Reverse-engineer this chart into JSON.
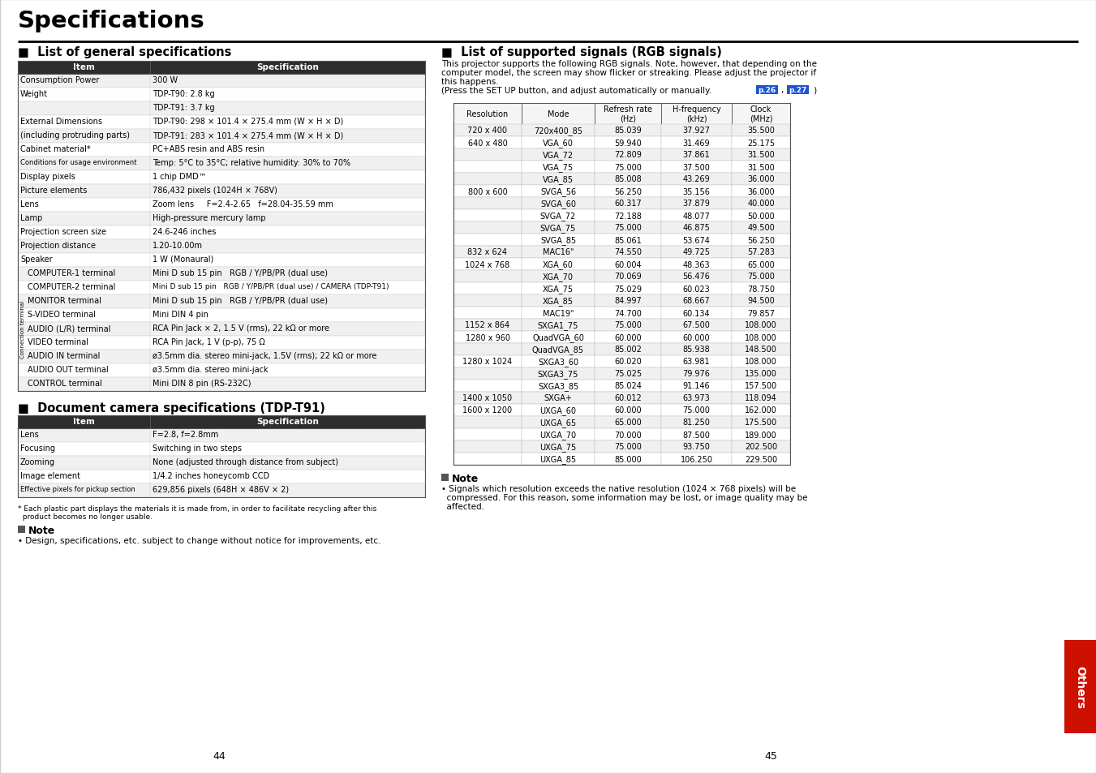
{
  "title": "Specifications",
  "page_left": "44",
  "page_right": "45",
  "section_left_title": "List of general specifications",
  "section_right_title": "List of supported signals (RGB signals)",
  "section_doc_title": "Document camera specifications (TDP-T91)",
  "general_specs_rows": [
    [
      "Consumption Power",
      "300 W",
      false,
      false
    ],
    [
      "Weight",
      "TDP-T90: 2.8 kg",
      false,
      false
    ],
    [
      "",
      "TDP-T91: 3.7 kg",
      false,
      false
    ],
    [
      "External Dimensions",
      "TDP-T90: 298 × 101.4 × 275.4 mm (W × H × D)",
      false,
      false
    ],
    [
      "(including protruding parts)",
      "TDP-T91: 283 × 101.4 × 275.4 mm (W × H × D)",
      false,
      false
    ],
    [
      "Cabinet material*",
      "PC+ABS resin and ABS resin",
      false,
      false
    ],
    [
      "Conditions for usage environment",
      "Temp: 5°C to 35°C; relative humidity: 30% to 70%",
      true,
      false
    ],
    [
      "Display pixels",
      "1 chip DMD™",
      false,
      false
    ],
    [
      "Picture elements",
      "786,432 pixels (1024H × 768V)",
      false,
      false
    ],
    [
      "Lens",
      "Zoom lens     F=2.4-2.65   f=28.04-35.59 mm",
      false,
      false
    ],
    [
      "Lamp",
      "High-pressure mercury lamp",
      false,
      false
    ],
    [
      "Projection screen size",
      "24.6-246 inches",
      false,
      false
    ],
    [
      "Projection distance",
      "1.20-10.00m",
      false,
      false
    ],
    [
      "Speaker",
      "1 W (Monaural)",
      false,
      false
    ],
    [
      "COMPUTER-1 terminal",
      "Mini D sub 15 pin   RGB / Y/PB/PR (dual use)",
      false,
      true
    ],
    [
      "COMPUTER-2 terminal",
      "Mini D sub 15 pin   RGB / Y/PB/PR (dual use) / CAMERA (TDP-T91)",
      false,
      true
    ],
    [
      "MONITOR terminal",
      "Mini D sub 15 pin   RGB / Y/PB/PR (dual use)",
      false,
      true
    ],
    [
      "S-VIDEO terminal",
      "Mini DIN 4 pin",
      false,
      true
    ],
    [
      "AUDIO (L/R) terminal",
      "RCA Pin Jack × 2, 1.5 V (rms), 22 kΩ or more",
      false,
      true
    ],
    [
      "VIDEO terminal",
      "RCA Pin Jack, 1 V (p-p), 75 Ω",
      false,
      true
    ],
    [
      "AUDIO IN terminal",
      "ø3.5mm dia. stereo mini-jack, 1.5V (rms); 22 kΩ or more",
      false,
      true
    ],
    [
      "AUDIO OUT terminal",
      "ø3.5mm dia. stereo mini-jack",
      false,
      true
    ],
    [
      "CONTROL terminal",
      "Mini DIN 8 pin (RS-232C)",
      false,
      true
    ]
  ],
  "doc_cam_rows": [
    [
      "Lens",
      "F=2.8, f=2.8mm",
      false
    ],
    [
      "Focusing",
      "Switching in two steps",
      false
    ],
    [
      "Zooming",
      "None (adjusted through distance from subject)",
      false
    ],
    [
      "Image element",
      "1/4.2 inches honeycomb CCD",
      false
    ],
    [
      "Effective pixels for pickup section",
      "629,856 pixels (648H × 486V × 2)",
      true
    ]
  ],
  "footnote_line1": "* Each plastic part displays the materials it is made from, in order to facilitate recycling after this",
  "footnote_line2": "  product becomes no longer usable.",
  "note_left_text": "• Design, specifications, etc. subject to change without notice for improvements, etc.",
  "rgb_intro_lines": [
    "This projector supports the following RGB signals. Note, however, that depending on the",
    "computer model, the screen may show flicker or streaking. Please adjust the projector if",
    "this happens.",
    "(Press the SET UP button, and adjust automatically or manually."
  ],
  "rgb_headers": [
    "Resolution",
    "Mode",
    "Refresh rate\n(Hz)",
    "H-frequency\n(kHz)",
    "Clock\n(MHz)"
  ],
  "rgb_rows": [
    [
      "720 x 400",
      "720x400_85",
      "85.039",
      "37.927",
      "35.500"
    ],
    [
      "640 x 480",
      "VGA_60",
      "59.940",
      "31.469",
      "25.175"
    ],
    [
      "",
      "VGA_72",
      "72.809",
      "37.861",
      "31.500"
    ],
    [
      "",
      "VGA_75",
      "75.000",
      "37.500",
      "31.500"
    ],
    [
      "",
      "VGA_85",
      "85.008",
      "43.269",
      "36.000"
    ],
    [
      "800 x 600",
      "SVGA_56",
      "56.250",
      "35.156",
      "36.000"
    ],
    [
      "",
      "SVGA_60",
      "60.317",
      "37.879",
      "40.000"
    ],
    [
      "",
      "SVGA_72",
      "72.188",
      "48.077",
      "50.000"
    ],
    [
      "",
      "SVGA_75",
      "75.000",
      "46.875",
      "49.500"
    ],
    [
      "",
      "SVGA_85",
      "85.061",
      "53.674",
      "56.250"
    ],
    [
      "832 x 624",
      "MAC16\"",
      "74.550",
      "49.725",
      "57.283"
    ],
    [
      "1024 x 768",
      "XGA_60",
      "60.004",
      "48.363",
      "65.000"
    ],
    [
      "",
      "XGA_70",
      "70.069",
      "56.476",
      "75.000"
    ],
    [
      "",
      "XGA_75",
      "75.029",
      "60.023",
      "78.750"
    ],
    [
      "",
      "XGA_85",
      "84.997",
      "68.667",
      "94.500"
    ],
    [
      "",
      "MAC19\"",
      "74.700",
      "60.134",
      "79.857"
    ],
    [
      "1152 x 864",
      "SXGA1_75",
      "75.000",
      "67.500",
      "108.000"
    ],
    [
      "1280 x 960",
      "QuadVGA_60",
      "60.000",
      "60.000",
      "108.000"
    ],
    [
      "",
      "QuadVGA_85",
      "85.002",
      "85.938",
      "148.500"
    ],
    [
      "1280 x 1024",
      "SXGA3_60",
      "60.020",
      "63.981",
      "108.000"
    ],
    [
      "",
      "SXGA3_75",
      "75.025",
      "79.976",
      "135.000"
    ],
    [
      "",
      "SXGA3_85",
      "85.024",
      "91.146",
      "157.500"
    ],
    [
      "1400 x 1050",
      "SXGA+",
      "60.012",
      "63.973",
      "118.094"
    ],
    [
      "1600 x 1200",
      "UXGA_60",
      "60.000",
      "75.000",
      "162.000"
    ],
    [
      "",
      "UXGA_65",
      "65.000",
      "81.250",
      "175.500"
    ],
    [
      "",
      "UXGA_70",
      "70.000",
      "87.500",
      "189.000"
    ],
    [
      "",
      "UXGA_75",
      "75.000",
      "93.750",
      "202.500"
    ],
    [
      "",
      "UXGA_85",
      "85.000",
      "106.250",
      "229.500"
    ]
  ],
  "note_right_line1": "• Signals which resolution exceeds the native resolution (1024 × 768 pixels) will be",
  "note_right_line2": "  compressed. For this reason, some information may be lost, or image quality may be",
  "note_right_line3": "  affected.",
  "others_tab_text": "Others"
}
